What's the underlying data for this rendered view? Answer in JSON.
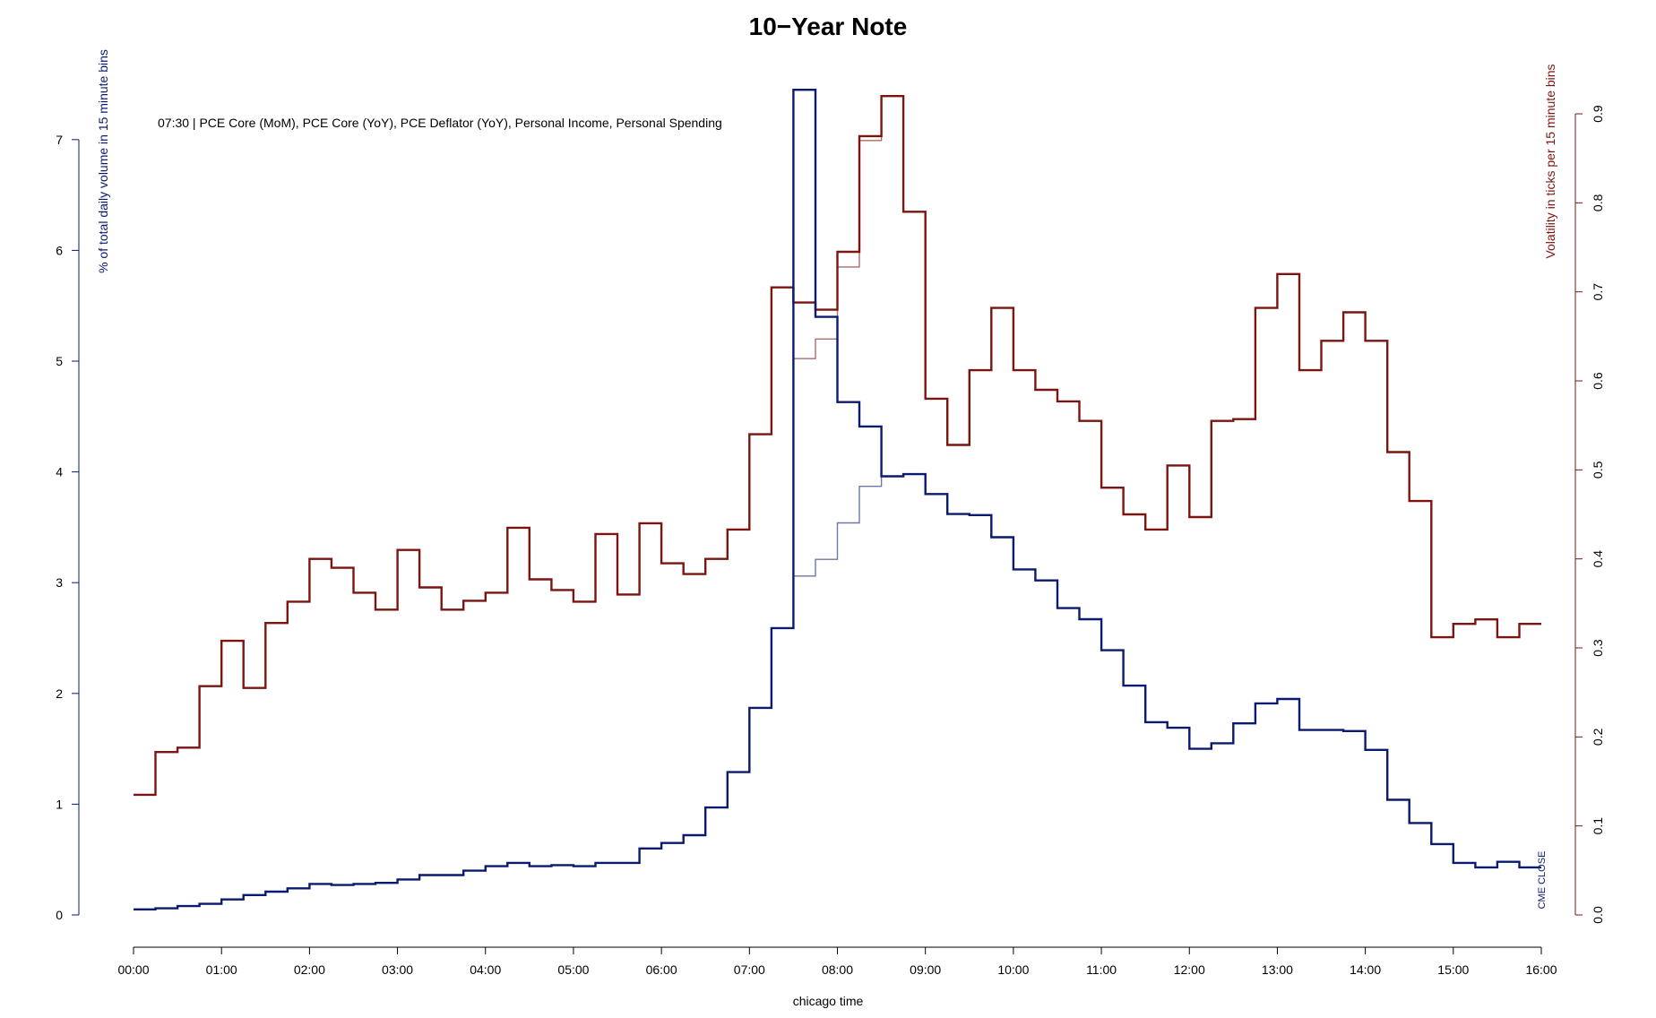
{
  "chart_data": {
    "type": "line",
    "step": true,
    "title": "10−Year Note",
    "xlabel": "chicago time",
    "ylabel_left": "% of total daily volume in 15 minute bins",
    "ylabel_right": "Volatility in ticks per 15 minute bins",
    "annotation": "07:30 | PCE Core (MoM), PCE Core (YoY), PCE Deflator (YoY), Personal Income, Personal Spending",
    "close_label": "CME CLOSE",
    "x_tick_labels": [
      "00:00",
      "01:00",
      "02:00",
      "03:00",
      "04:00",
      "05:00",
      "06:00",
      "07:00",
      "08:00",
      "09:00",
      "10:00",
      "11:00",
      "12:00",
      "13:00",
      "14:00",
      "15:00",
      "16:00"
    ],
    "y_left_ticks": [
      "0",
      "1",
      "2",
      "3",
      "4",
      "5",
      "6",
      "7"
    ],
    "y_right_ticks": [
      "0.0",
      "0.1",
      "0.2",
      "0.3",
      "0.4",
      "0.5",
      "0.6",
      "0.7",
      "0.8",
      "0.9"
    ],
    "xlim_hours": [
      0,
      16
    ],
    "ylim_left": [
      0,
      7
    ],
    "ylim_right": [
      0,
      0.9
    ],
    "grid": false,
    "colors": {
      "volume": "#0a1a6e",
      "volatility": "#7a1510",
      "volume_light": "#6f76a8",
      "volatility_light": "#a86f6b"
    },
    "series": [
      {
        "name": "volume",
        "axis": "left",
        "x_start_hours": [
          0,
          0.25,
          0.5,
          0.75,
          1,
          1.25,
          1.5,
          1.75,
          2,
          2.25,
          2.5,
          2.75,
          3,
          3.25,
          3.5,
          3.75,
          4,
          4.25,
          4.5,
          4.75,
          5,
          5.25,
          5.5,
          5.75,
          6,
          6.25,
          6.5,
          6.75,
          7,
          7.25,
          7.5,
          7.75,
          8,
          8.25,
          8.5,
          8.75,
          9,
          9.25,
          9.5,
          9.75,
          10,
          10.25,
          10.5,
          10.75,
          11,
          11.25,
          11.5,
          11.75,
          12,
          12.25,
          12.5,
          12.75,
          13,
          13.25,
          13.5,
          13.75,
          14,
          14.25,
          14.5,
          14.75,
          15,
          15.25,
          15.5,
          15.75
        ],
        "values": [
          0.05,
          0.06,
          0.08,
          0.1,
          0.14,
          0.18,
          0.21,
          0.24,
          0.28,
          0.27,
          0.28,
          0.29,
          0.32,
          0.36,
          0.36,
          0.4,
          0.44,
          0.47,
          0.44,
          0.45,
          0.44,
          0.47,
          0.47,
          0.6,
          0.65,
          0.72,
          0.97,
          1.29,
          1.87,
          2.59,
          7.45,
          5.4,
          4.63,
          4.41,
          3.96,
          3.98,
          3.8,
          3.62,
          3.61,
          3.41,
          3.12,
          3.02,
          2.77,
          2.67,
          2.39,
          2.07,
          1.74,
          1.69,
          1.5,
          1.55,
          1.73,
          1.91,
          1.95,
          1.67,
          1.67,
          1.66,
          1.49,
          1.04,
          0.83,
          0.64,
          0.47,
          0.43,
          0.48,
          0.43
        ]
      },
      {
        "name": "volume (secondary)",
        "axis": "left",
        "x_start_hours": [
          7.5,
          7.75,
          8,
          8.25,
          8.5
        ],
        "values": [
          3.06,
          3.21,
          3.54,
          3.87,
          3.96
        ]
      },
      {
        "name": "volatility",
        "axis": "right",
        "x_start_hours": [
          0,
          0.25,
          0.5,
          0.75,
          1,
          1.25,
          1.5,
          1.75,
          2,
          2.25,
          2.5,
          2.75,
          3,
          3.25,
          3.5,
          3.75,
          4,
          4.25,
          4.5,
          4.75,
          5,
          5.25,
          5.5,
          5.75,
          6,
          6.25,
          6.5,
          6.75,
          7,
          7.25,
          7.5,
          7.75,
          8,
          8.25,
          8.5,
          8.75,
          9,
          9.25,
          9.5,
          9.75,
          10,
          10.25,
          10.5,
          10.75,
          11,
          11.25,
          11.5,
          11.75,
          12,
          12.25,
          12.5,
          12.75,
          13,
          13.25,
          13.5,
          13.75,
          14,
          14.25,
          14.5,
          14.75,
          15,
          15.25,
          15.5,
          15.75
        ],
        "values": [
          0.135,
          0.183,
          0.188,
          0.257,
          0.308,
          0.255,
          0.328,
          0.352,
          0.4,
          0.39,
          0.362,
          0.343,
          0.41,
          0.368,
          0.343,
          0.353,
          0.362,
          0.435,
          0.377,
          0.365,
          0.352,
          0.428,
          0.36,
          0.44,
          0.395,
          0.383,
          0.4,
          0.433,
          0.54,
          0.705,
          0.688,
          0.68,
          0.745,
          0.875,
          0.92,
          0.79,
          0.58,
          0.528,
          0.612,
          0.682,
          0.612,
          0.59,
          0.577,
          0.555,
          0.48,
          0.45,
          0.433,
          0.505,
          0.447,
          0.555,
          0.557,
          0.682,
          0.72,
          0.612,
          0.645,
          0.677,
          0.645,
          0.52,
          0.465,
          0.312,
          0.327,
          0.332,
          0.312,
          0.327
        ]
      },
      {
        "name": "volatility (secondary)",
        "axis": "right",
        "x_start_hours": [
          7.5,
          7.75,
          8,
          8.25,
          8.5
        ],
        "values": [
          0.625,
          0.647,
          0.728,
          0.87,
          0.92
        ]
      }
    ]
  }
}
